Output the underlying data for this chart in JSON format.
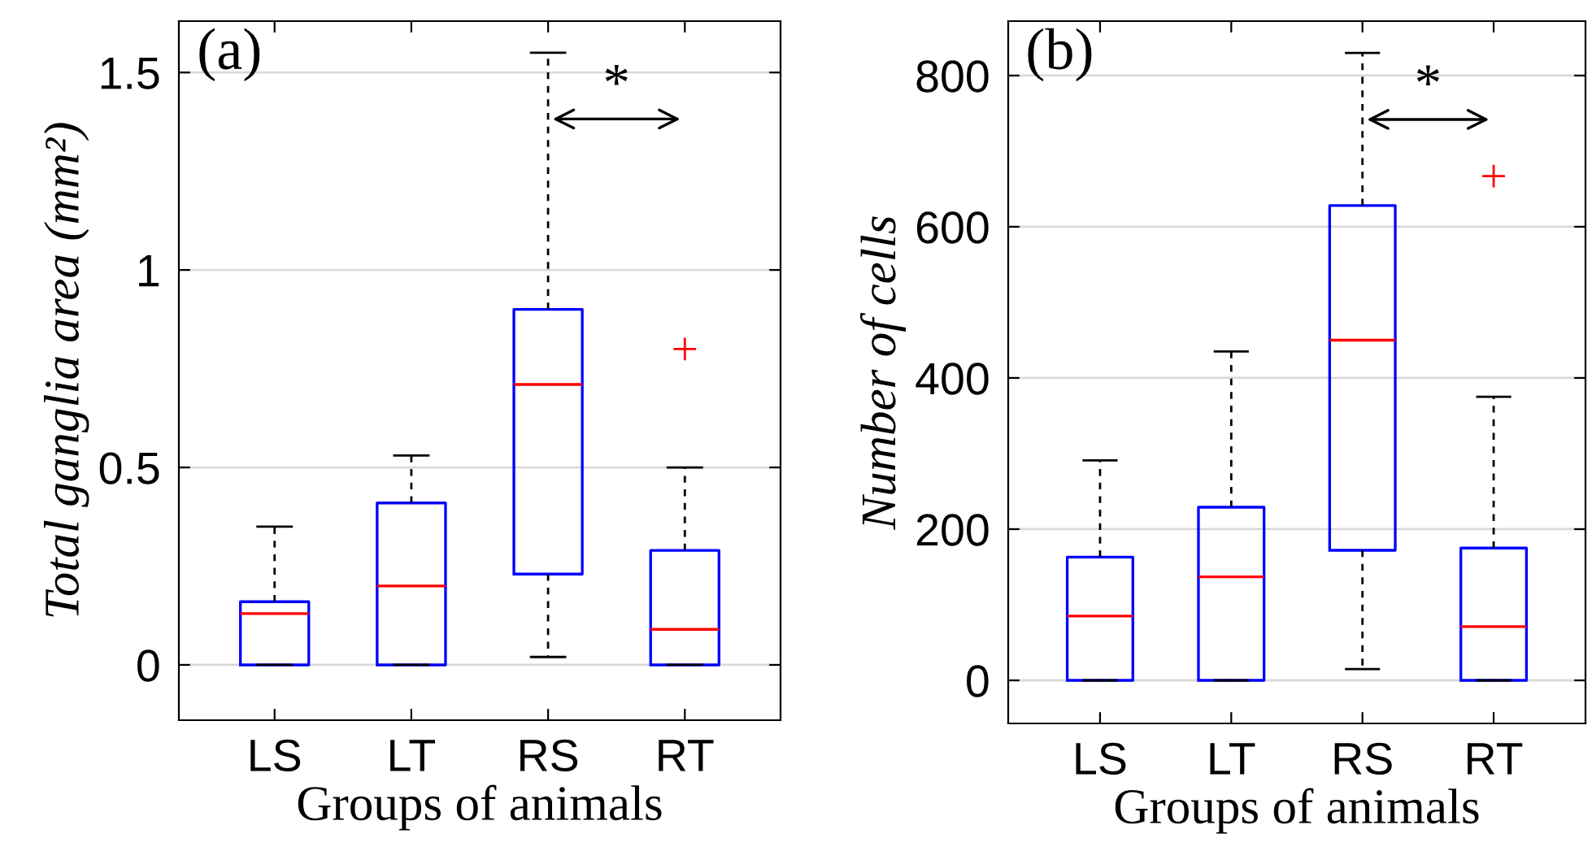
{
  "chart_data": [
    {
      "type": "box",
      "categories": [
        "LS",
        "LT",
        "RS",
        "RT"
      ],
      "xlabel": "Groups of animals",
      "ylabel": "Total ganglia area (mm²)",
      "ylim": [
        -0.14,
        1.63
      ],
      "yticks": [
        0,
        0.5,
        1,
        1.5
      ],
      "grid": "y",
      "annotations": [
        "(a)",
        "*"
      ],
      "series": [
        {
          "color": "#0000ff",
          "boxes": [
            {
              "low": 0,
              "q1": 0,
              "median": 0.13,
              "q3": 0.16,
              "high": 0.35
            },
            {
              "low": 0,
              "q1": 0,
              "median": 0.2,
              "q3": 0.41,
              "high": 0.53
            },
            {
              "low": 0.02,
              "q1": 0.23,
              "median": 0.71,
              "q3": 0.9,
              "high": 1.55
            },
            {
              "low": 0,
              "q1": 0,
              "median": 0.09,
              "q3": 0.29,
              "high": 0.5,
              "outliers": [
                0.8
              ]
            }
          ]
        }
      ]
    },
    {
      "type": "box",
      "categories": [
        "LS",
        "LT",
        "RS",
        "RT"
      ],
      "xlabel": "Groups of animals",
      "ylabel": "Number of cells",
      "ylim": [
        -57,
        872
      ],
      "yticks": [
        0,
        200,
        400,
        600,
        800
      ],
      "grid": "y",
      "annotations": [
        "(b)",
        "*"
      ],
      "series": [
        {
          "color": "#0000ff",
          "boxes": [
            {
              "low": 0,
              "q1": 0,
              "median": 85,
              "q3": 163,
              "high": 291
            },
            {
              "low": 0,
              "q1": 0,
              "median": 137,
              "q3": 229,
              "high": 435
            },
            {
              "low": 15,
              "q1": 172,
              "median": 450,
              "q3": 628,
              "high": 830
            },
            {
              "low": 0,
              "q1": 0,
              "median": 71,
              "q3": 175,
              "high": 375,
              "outliers": [
                667
              ]
            }
          ]
        }
      ]
    }
  ]
}
